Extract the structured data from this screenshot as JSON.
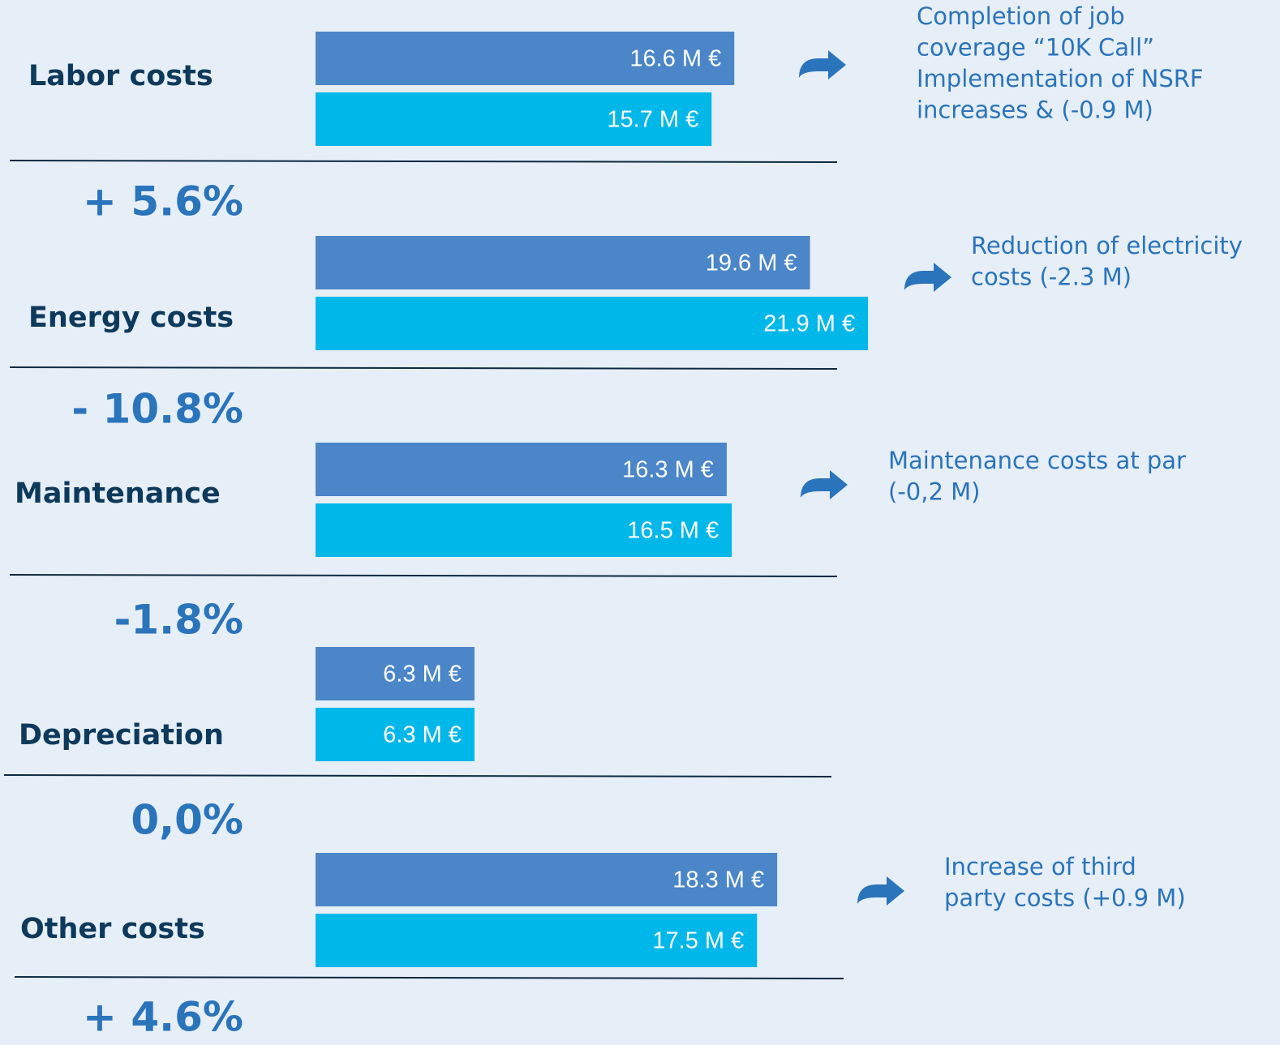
{
  "chart_data": {
    "type": "bar",
    "orientation": "horizontal",
    "categories": [
      "Labor costs",
      "Energy costs",
      "Maintenance",
      "Depreciation",
      "Other costs"
    ],
    "series": [
      {
        "color": "#4a86c8",
        "values": [
          16.6,
          19.6,
          16.3,
          6.3,
          18.3
        ],
        "value_labels": [
          "16.6 M €",
          "19.6 M €",
          "16.3 M €",
          "6.3 M €",
          "18.3 M €"
        ]
      },
      {
        "color": "#00b7ea",
        "values": [
          15.7,
          21.9,
          16.5,
          6.3,
          17.5
        ],
        "value_labels": [
          "15.7 M €",
          "21.9 M €",
          "16.5 M €",
          "6.3 M €",
          "17.5 M €"
        ]
      }
    ],
    "changes": [
      "+ 5.6%",
      "- 10.8%",
      "-1.8%",
      "0,0%",
      "+ 4.6%"
    ],
    "notes": [
      [
        "Completion of job",
        "coverage “10K Call”",
        "Implementation of NSRF",
        "increases & (-0.9 M)"
      ],
      [
        "Reduction of electricity",
        "costs (-2.3 M)"
      ],
      [
        "Maintenance costs at par",
        "(-0,2 M)"
      ],
      null,
      [
        "Increase of third",
        "party costs (+0.9 M)"
      ]
    ]
  }
}
